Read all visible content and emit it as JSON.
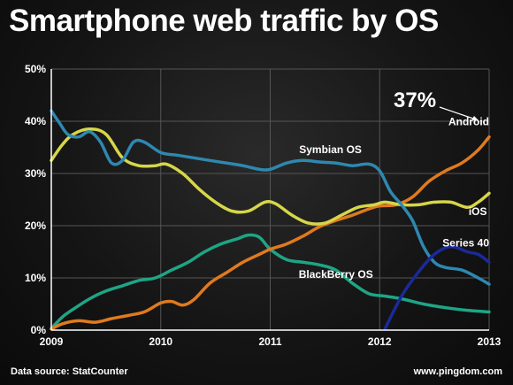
{
  "title": "Smartphone web traffic by OS",
  "footer": {
    "source": "Data source: StatCounter",
    "site": "www.pingdom.com"
  },
  "colors": {
    "android": "#e07a1e",
    "symbian": "#2e88b0",
    "ios": "#d6d64a",
    "blackberry": "#1ea585",
    "series40": "#1a2a9a",
    "grid": "#555555",
    "axis": "#ffffff"
  },
  "chart_data": {
    "type": "line",
    "title": "Smartphone web traffic by OS",
    "xlim": [
      2009,
      2013
    ],
    "ylim": [
      0,
      50
    ],
    "yticks": [
      0,
      10,
      20,
      30,
      40,
      50
    ],
    "ytick_labels": [
      "0%",
      "10%",
      "20%",
      "30%",
      "40%",
      "50%"
    ],
    "xticks": [
      2009,
      2010,
      2011,
      2012,
      2013
    ],
    "xtick_labels": [
      "2009",
      "2010",
      "2011",
      "2012",
      "2013"
    ],
    "grid": true,
    "annotation": {
      "text": "37%",
      "target_series": "Android",
      "x": 2013,
      "y": 37
    },
    "series": [
      {
        "name": "Android",
        "color_key": "android",
        "x": [
          2009,
          2009.1,
          2009.25,
          2009.4,
          2009.55,
          2009.7,
          2009.85,
          2010.0,
          2010.1,
          2010.2,
          2010.3,
          2010.45,
          2010.6,
          2010.75,
          2010.9,
          2011.0,
          2011.15,
          2011.3,
          2011.45,
          2011.6,
          2011.75,
          2011.9,
          2012.0,
          2012.15,
          2012.3,
          2012.45,
          2012.6,
          2012.75,
          2012.9,
          2013.0
        ],
        "y": [
          0.2,
          1.2,
          1.8,
          1.5,
          2.2,
          2.8,
          3.5,
          5.2,
          5.5,
          4.8,
          5.8,
          9.0,
          11.0,
          13.0,
          14.5,
          15.5,
          16.5,
          18.0,
          19.8,
          21.0,
          22.0,
          23.2,
          23.8,
          24.0,
          25.5,
          28.5,
          30.5,
          32.0,
          34.5,
          37.0
        ]
      },
      {
        "name": "Symbian OS",
        "color_key": "symbian",
        "x": [
          2009,
          2009.08,
          2009.15,
          2009.25,
          2009.35,
          2009.45,
          2009.55,
          2009.65,
          2009.75,
          2009.85,
          2010.0,
          2010.15,
          2010.3,
          2010.45,
          2010.6,
          2010.75,
          2010.9,
          2011.0,
          2011.15,
          2011.3,
          2011.45,
          2011.6,
          2011.75,
          2011.9,
          2012.0,
          2012.1,
          2012.2,
          2012.3,
          2012.4,
          2012.5,
          2012.6,
          2012.75,
          2012.9,
          2013.0
        ],
        "y": [
          42.0,
          39.5,
          37.5,
          37.0,
          38.0,
          36.0,
          32.0,
          32.5,
          36.0,
          36.0,
          34.0,
          33.5,
          33.0,
          32.5,
          32.0,
          31.5,
          30.8,
          30.8,
          32.0,
          32.5,
          32.2,
          32.0,
          31.5,
          31.8,
          30.5,
          26.5,
          24.0,
          21.0,
          16.0,
          13.0,
          12.0,
          11.5,
          10.0,
          8.8
        ]
      },
      {
        "name": "iOS",
        "color_key": "ios",
        "x": [
          2009,
          2009.1,
          2009.2,
          2009.35,
          2009.5,
          2009.65,
          2009.8,
          2009.95,
          2010.05,
          2010.2,
          2010.35,
          2010.5,
          2010.65,
          2010.8,
          2010.95,
          2011.05,
          2011.2,
          2011.35,
          2011.5,
          2011.65,
          2011.8,
          2011.95,
          2012.05,
          2012.2,
          2012.35,
          2012.5,
          2012.65,
          2012.8,
          2012.9,
          2013.0
        ],
        "y": [
          32.5,
          35.5,
          37.5,
          38.5,
          37.5,
          33.0,
          31.5,
          31.5,
          31.8,
          30.0,
          27.0,
          24.5,
          22.8,
          22.8,
          24.5,
          24.2,
          22.0,
          20.5,
          20.5,
          22.0,
          23.5,
          24.0,
          24.5,
          24.0,
          24.0,
          24.5,
          24.5,
          23.5,
          24.5,
          26.2
        ]
      },
      {
        "name": "BlackBerry OS",
        "color_key": "blackberry",
        "x": [
          2009,
          2009.1,
          2009.2,
          2009.35,
          2009.5,
          2009.65,
          2009.8,
          2009.95,
          2010.1,
          2010.25,
          2010.4,
          2010.55,
          2010.7,
          2010.8,
          2010.9,
          2011.0,
          2011.15,
          2011.3,
          2011.45,
          2011.6,
          2011.75,
          2011.9,
          2012.05,
          2012.2,
          2012.4,
          2012.6,
          2012.8,
          2013.0
        ],
        "y": [
          0.3,
          2.5,
          4.0,
          6.0,
          7.5,
          8.5,
          9.5,
          10.0,
          11.5,
          13.0,
          15.0,
          16.5,
          17.5,
          18.2,
          17.8,
          15.5,
          13.5,
          13.0,
          12.5,
          11.5,
          9.0,
          7.0,
          6.5,
          6.0,
          5.0,
          4.3,
          3.8,
          3.5
        ]
      },
      {
        "name": "Series 40",
        "color_key": "series40",
        "x": [
          2012.05,
          2012.2,
          2012.35,
          2012.5,
          2012.65,
          2012.8,
          2012.9,
          2013.0
        ],
        "y": [
          0.3,
          6.5,
          11.0,
          14.5,
          16.0,
          15.0,
          14.5,
          13.0
        ]
      }
    ],
    "line_labels": [
      {
        "series": "Android",
        "text": "Android"
      },
      {
        "series": "Symbian OS",
        "text": "Symbian OS"
      },
      {
        "series": "iOS",
        "text": "iOS"
      },
      {
        "series": "BlackBerry OS",
        "text": "BlackBerry OS"
      },
      {
        "series": "Series 40",
        "text": "Series 40"
      }
    ]
  }
}
